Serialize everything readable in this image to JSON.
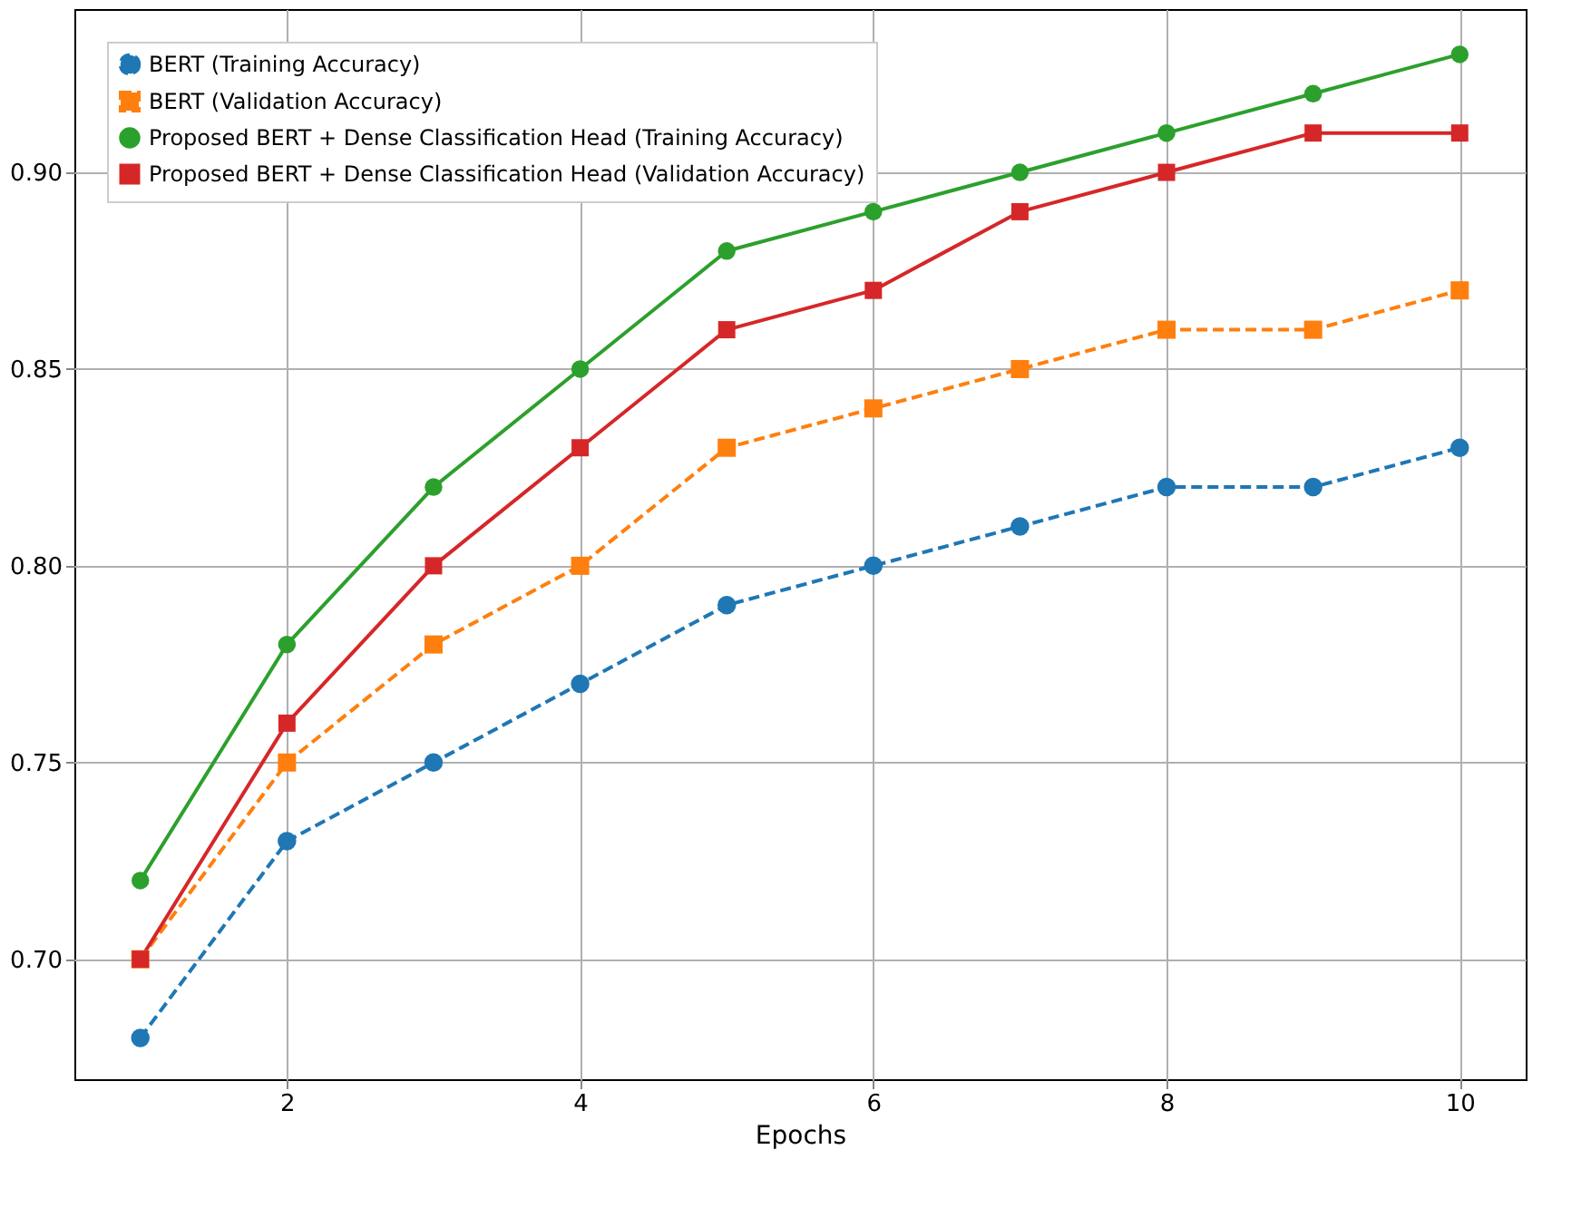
{
  "chart_data": {
    "type": "line",
    "xlabel": "Epochs",
    "x": [
      1,
      2,
      3,
      4,
      5,
      6,
      7,
      8,
      9,
      10
    ],
    "series": [
      {
        "name": "BERT (Training Accuracy)",
        "color": "#1f77b4",
        "marker": "circle",
        "line_style": "dashed",
        "values": [
          0.68,
          0.73,
          0.75,
          0.77,
          0.79,
          0.8,
          0.81,
          0.82,
          0.82,
          0.83
        ]
      },
      {
        "name": "BERT (Validation Accuracy)",
        "color": "#ff7f0e",
        "marker": "square",
        "line_style": "dashed",
        "values": [
          0.7,
          0.75,
          0.78,
          0.8,
          0.83,
          0.84,
          0.85,
          0.86,
          0.86,
          0.87
        ]
      },
      {
        "name": "Proposed BERT + Dense Classification Head (Training Accuracy)",
        "color": "#2ca02c",
        "marker": "circle",
        "line_style": "solid",
        "values": [
          0.72,
          0.78,
          0.82,
          0.85,
          0.88,
          0.89,
          0.9,
          0.91,
          0.92,
          0.93
        ]
      },
      {
        "name": "Proposed BERT + Dense Classification Head (Validation Accuracy)",
        "color": "#d62728",
        "marker": "square",
        "line_style": "solid",
        "values": [
          0.7,
          0.76,
          0.8,
          0.83,
          0.86,
          0.87,
          0.89,
          0.9,
          0.91,
          0.91
        ]
      }
    ],
    "xlim": [
      0.55,
      10.45
    ],
    "ylim": [
      0.6695,
      0.9415
    ],
    "xticks": [
      2,
      4,
      6,
      8,
      10
    ],
    "yticks": [
      {
        "value": 0.7,
        "label": "0.70"
      },
      {
        "value": 0.75,
        "label": "0.75"
      },
      {
        "value": 0.8,
        "label": "0.80"
      },
      {
        "value": 0.85,
        "label": "0.85"
      },
      {
        "value": 0.9,
        "label": "0.90"
      }
    ],
    "grid": true,
    "legend": "top left"
  }
}
